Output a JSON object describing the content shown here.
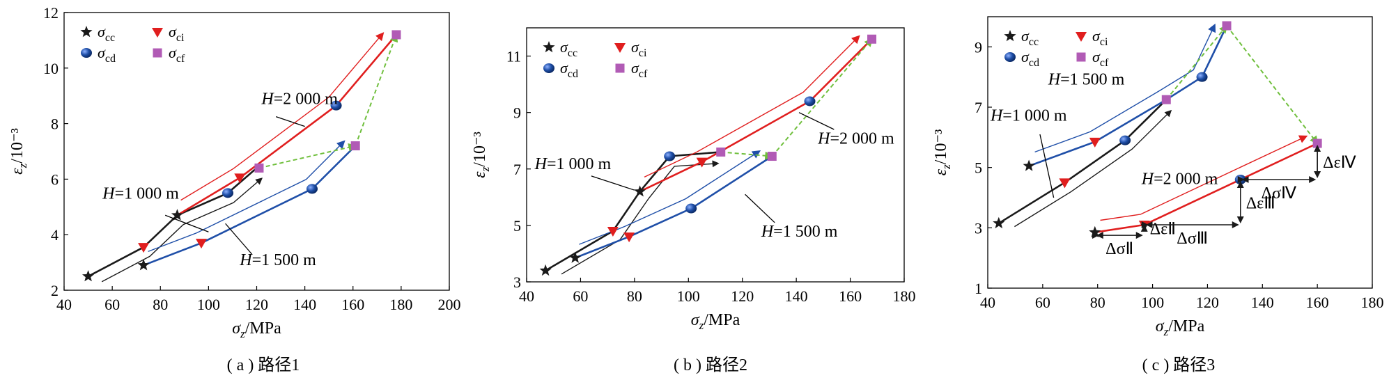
{
  "chart_data": [
    {
      "type": "line",
      "panel": "a",
      "caption": "( a ) 路径1",
      "xlabel": "σz/MPa",
      "ylabel": "εz/10⁻³",
      "xlim": [
        40,
        200
      ],
      "ylim": [
        2,
        12
      ],
      "xticks": [
        40,
        60,
        80,
        100,
        120,
        140,
        160,
        180,
        200
      ],
      "yticks": [
        2,
        4,
        6,
        8,
        10,
        12
      ],
      "legend": [
        {
          "key": "cc",
          "label": "σcc",
          "marker": "star",
          "color": "#1a1a1a"
        },
        {
          "key": "ci",
          "label": "σci",
          "marker": "triangle-down",
          "color": "#e01e1e"
        },
        {
          "key": "cd",
          "label": "σcd",
          "marker": "ball",
          "color": "#1f4fa8"
        },
        {
          "key": "cf",
          "label": "σcf",
          "marker": "square",
          "color": "#b15bb5"
        }
      ],
      "series": [
        {
          "name": "H=1 000 m",
          "color": "#1a1a1a",
          "points": [
            [
              50,
              2.5
            ],
            [
              73,
              3.55
            ],
            [
              87,
              4.7
            ],
            [
              108,
              5.5
            ],
            [
              120,
              6.4
            ]
          ]
        },
        {
          "name": "H=1 500 m",
          "color": "#1f4fa8",
          "points": [
            [
              73,
              2.9
            ],
            [
              97,
              3.7
            ],
            [
              143,
              5.65
            ],
            [
              161,
              7.2
            ]
          ]
        },
        {
          "name": "H=2 000 m",
          "color": "#e01e1e",
          "points": [
            [
              87,
              4.7
            ],
            [
              113,
              6.05
            ],
            [
              153,
              8.65
            ],
            [
              178,
              11.2
            ]
          ]
        }
      ],
      "points": [
        {
          "series": "H=1 000 m",
          "type": "cc",
          "x": 50,
          "y": 2.5
        },
        {
          "series": "H=1 000 m",
          "type": "ci",
          "x": 73,
          "y": 3.55
        },
        {
          "series": "H=1 000 m",
          "type": "cd",
          "x": 108,
          "y": 5.5
        },
        {
          "series": "H=1 000 m",
          "type": "cf",
          "x": 121,
          "y": 6.4
        },
        {
          "series": "H=1 500 m",
          "type": "cc",
          "x": 73,
          "y": 2.9
        },
        {
          "series": "H=1 500 m",
          "type": "ci",
          "x": 97,
          "y": 3.7
        },
        {
          "series": "H=1 500 m",
          "type": "cd",
          "x": 143,
          "y": 5.65
        },
        {
          "series": "H=1 500 m",
          "type": "cf",
          "x": 161,
          "y": 7.2
        },
        {
          "series": "H=2 000 m",
          "type": "cc",
          "x": 87,
          "y": 4.7
        },
        {
          "series": "H=2 000 m",
          "type": "ci",
          "x": 113,
          "y": 6.05
        },
        {
          "series": "H=2 000 m",
          "type": "cd",
          "x": 153,
          "y": 8.65
        },
        {
          "series": "H=2 000 m",
          "type": "cf",
          "x": 178,
          "y": 11.2
        }
      ],
      "cf_link": {
        "color": "#6fbf3c",
        "points": [
          [
            121,
            6.4
          ],
          [
            161,
            7.2
          ],
          [
            178,
            11.2
          ]
        ]
      },
      "annotations": [
        {
          "text": "H=2 000 m",
          "x": 122,
          "y": 8.7,
          "leader": [
            [
              128,
              8.25
            ],
            [
              140,
              7.9
            ]
          ]
        },
        {
          "text": "H=1 000 m",
          "x": 56,
          "y": 5.3,
          "leader": [
            [
              82,
              4.7
            ],
            [
              100,
              4.1
            ]
          ]
        },
        {
          "text": "H=1 500 m",
          "x": 113,
          "y": 2.9,
          "leader": [
            [
              118,
              3.3
            ],
            [
              107,
              4.4
            ]
          ]
        }
      ]
    },
    {
      "type": "line",
      "panel": "b",
      "caption": "( b ) 路径2",
      "xlabel": "σz/MPa",
      "ylabel": "εz/10⁻³",
      "xlim": [
        40,
        180
      ],
      "ylim": [
        3,
        12
      ],
      "xticks": [
        40,
        60,
        80,
        100,
        120,
        140,
        160,
        180
      ],
      "yticks": [
        3,
        5,
        7,
        9,
        11
      ],
      "legend": [
        {
          "key": "cc",
          "label": "σcc",
          "marker": "star",
          "color": "#1a1a1a"
        },
        {
          "key": "ci",
          "label": "σci",
          "marker": "triangle-down",
          "color": "#e01e1e"
        },
        {
          "key": "cd",
          "label": "σcd",
          "marker": "ball",
          "color": "#1f4fa8"
        },
        {
          "key": "cf",
          "label": "σcf",
          "marker": "square",
          "color": "#b15bb5"
        }
      ],
      "series": [
        {
          "name": "H=1 000 m",
          "color": "#1a1a1a",
          "points": [
            [
              47,
              3.4
            ],
            [
              72,
              4.8
            ],
            [
              82,
              6.2
            ],
            [
              93,
              7.45
            ],
            [
              112,
              7.6
            ]
          ]
        },
        {
          "name": "H=1 500 m",
          "color": "#1f4fa8",
          "points": [
            [
              58,
              3.85
            ],
            [
              78,
              4.6
            ],
            [
              101,
              5.6
            ],
            [
              131,
              7.45
            ]
          ]
        },
        {
          "name": "H=2 000 m",
          "color": "#e01e1e",
          "points": [
            [
              82,
              6.2
            ],
            [
              105,
              7.25
            ],
            [
              145,
              9.4
            ],
            [
              168,
              11.6
            ]
          ]
        }
      ],
      "points": [
        {
          "series": "H=1 000 m",
          "type": "cc",
          "x": 47,
          "y": 3.4
        },
        {
          "series": "H=1 000 m",
          "type": "ci",
          "x": 72,
          "y": 4.8
        },
        {
          "series": "H=1 000 m",
          "type": "cd",
          "x": 93,
          "y": 7.45
        },
        {
          "series": "H=1 000 m",
          "type": "cf",
          "x": 112,
          "y": 7.6
        },
        {
          "series": "H=1 500 m",
          "type": "cc",
          "x": 58,
          "y": 3.85
        },
        {
          "series": "H=1 500 m",
          "type": "ci",
          "x": 78,
          "y": 4.6
        },
        {
          "series": "H=1 500 m",
          "type": "cd",
          "x": 101,
          "y": 5.6
        },
        {
          "series": "H=1 500 m",
          "type": "cf",
          "x": 131,
          "y": 7.45
        },
        {
          "series": "H=2 000 m",
          "type": "cc",
          "x": 82,
          "y": 6.2
        },
        {
          "series": "H=2 000 m",
          "type": "ci",
          "x": 105,
          "y": 7.25
        },
        {
          "series": "H=2 000 m",
          "type": "cd",
          "x": 145,
          "y": 9.4
        },
        {
          "series": "H=2 000 m",
          "type": "cf",
          "x": 168,
          "y": 11.6
        }
      ],
      "cf_link": {
        "color": "#6fbf3c",
        "points": [
          [
            112,
            7.6
          ],
          [
            131,
            7.45
          ],
          [
            168,
            11.6
          ]
        ]
      },
      "annotations": [
        {
          "text": "H=1 000 m",
          "x": 43,
          "y": 7.0,
          "leader": [
            [
              64,
              6.75
            ],
            [
              80,
              6.25
            ]
          ]
        },
        {
          "text": "H=2 000 m",
          "x": 148,
          "y": 7.9,
          "leader": [
            [
              154,
              8.4
            ],
            [
              141,
              9.0
            ]
          ]
        },
        {
          "text": "H=1 500 m",
          "x": 127,
          "y": 4.6,
          "leader": [
            [
              132,
              5.1
            ],
            [
              121,
              6.1
            ]
          ]
        }
      ]
    },
    {
      "type": "line",
      "panel": "c",
      "caption": "( c ) 路径3",
      "xlabel": "σz/MPa",
      "ylabel": "εz/10⁻³",
      "xlim": [
        40,
        180
      ],
      "ylim": [
        1,
        10
      ],
      "xticks": [
        40,
        60,
        80,
        100,
        120,
        140,
        160,
        180
      ],
      "yticks": [
        1,
        3,
        5,
        7,
        9
      ],
      "legend": [
        {
          "key": "cc",
          "label": "σcc",
          "marker": "star",
          "color": "#1a1a1a"
        },
        {
          "key": "ci",
          "label": "σci",
          "marker": "triangle-down",
          "color": "#e01e1e"
        },
        {
          "key": "cd",
          "label": "σcd",
          "marker": "ball",
          "color": "#1f4fa8"
        },
        {
          "key": "cf",
          "label": "σcf",
          "marker": "square",
          "color": "#b15bb5"
        }
      ],
      "series": [
        {
          "name": "H=1 000 m",
          "color": "#1a1a1a",
          "points": [
            [
              44,
              3.15
            ],
            [
              68,
              4.5
            ],
            [
              90,
              5.9
            ],
            [
              105,
              7.25
            ]
          ]
        },
        {
          "name": "H=1 500 m",
          "color": "#1f4fa8",
          "points": [
            [
              55,
              5.05
            ],
            [
              79,
              5.85
            ],
            [
              105,
              7.25
            ],
            [
              118,
              8.0
            ],
            [
              127,
              9.7
            ]
          ]
        },
        {
          "name": "H=2 000 m",
          "color": "#e01e1e",
          "points": [
            [
              79,
              2.85
            ],
            [
              97,
              3.1
            ],
            [
              132,
              4.6
            ],
            [
              160,
              5.8
            ]
          ]
        }
      ],
      "points": [
        {
          "series": "H=1 000 m",
          "type": "cc",
          "x": 44,
          "y": 3.15
        },
        {
          "series": "H=1 000 m",
          "type": "ci",
          "x": 68,
          "y": 4.5
        },
        {
          "series": "H=1 000 m",
          "type": "cd",
          "x": 90,
          "y": 5.9
        },
        {
          "series": "H=1 000 m",
          "type": "cf",
          "x": 105,
          "y": 7.25
        },
        {
          "series": "H=1 500 m",
          "type": "cc",
          "x": 55,
          "y": 5.05
        },
        {
          "series": "H=1 500 m",
          "type": "ci",
          "x": 79,
          "y": 5.85
        },
        {
          "series": "H=1 500 m",
          "type": "cd",
          "x": 118,
          "y": 8.0
        },
        {
          "series": "H=1 500 m",
          "type": "cf",
          "x": 127,
          "y": 9.7
        },
        {
          "series": "H=2 000 m",
          "type": "cc",
          "x": 79,
          "y": 2.85
        },
        {
          "series": "H=2 000 m",
          "type": "ci",
          "x": 97,
          "y": 3.1
        },
        {
          "series": "H=2 000 m",
          "type": "cd",
          "x": 132,
          "y": 4.6
        },
        {
          "series": "H=2 000 m",
          "type": "cf",
          "x": 160,
          "y": 5.8
        }
      ],
      "cf_link": {
        "color": "#6fbf3c",
        "points": [
          [
            105,
            7.25
          ],
          [
            127,
            9.7
          ],
          [
            160,
            5.8
          ]
        ]
      },
      "annotations": [
        {
          "text": "H=1 500 m",
          "x": 62,
          "y": 7.75,
          "leader": null
        },
        {
          "text": "H=1 000 m",
          "x": 41,
          "y": 6.55,
          "leader": [
            [
              59,
              6.1
            ],
            [
              64,
              4.0
            ]
          ]
        },
        {
          "text": "H=2 000 m",
          "x": 96,
          "y": 4.45,
          "leader": null
        }
      ],
      "increments": [
        {
          "type": "sigma",
          "label": "ΔσⅡ",
          "x1": 79,
          "x2": 97,
          "y": 2.75
        },
        {
          "type": "eps",
          "label": "ΔεⅡ",
          "x": 97,
          "y1": 2.85,
          "y2": 3.15
        },
        {
          "type": "sigma",
          "label": "ΔσⅢ",
          "x1": 97,
          "x2": 132,
          "y": 3.1
        },
        {
          "type": "eps",
          "label": "ΔεⅢ",
          "x": 132,
          "y1": 3.1,
          "y2": 4.6
        },
        {
          "type": "sigma",
          "label": "ΔσⅣ",
          "x1": 132,
          "x2": 160,
          "y": 4.6
        },
        {
          "type": "eps",
          "label": "ΔεⅣ",
          "x": 160,
          "y1": 4.6,
          "y2": 5.8
        }
      ]
    }
  ]
}
